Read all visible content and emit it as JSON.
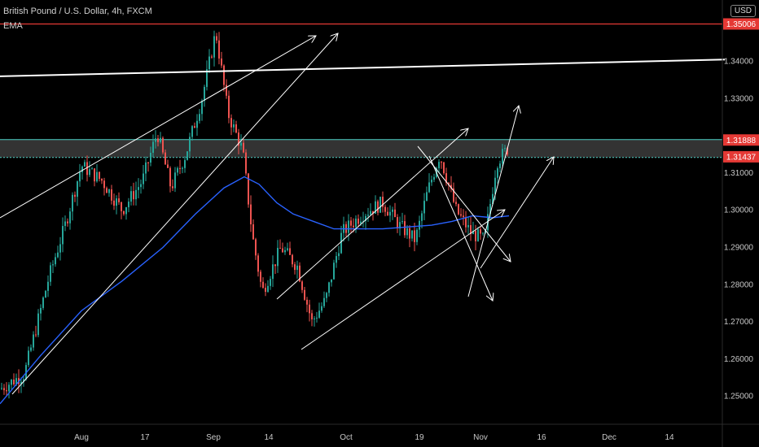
{
  "header": {
    "title": "British Pound / U.S. Dollar, 4h, FXCM",
    "indicator": "EMA"
  },
  "currency_label": "USD",
  "colors": {
    "background": "#000000",
    "candle_up": "#26a69a",
    "candle_down": "#ef5350",
    "ema": "#2962ff",
    "trendline": "#ffffff",
    "resistance": "#e53935",
    "zone": "#4dd0c5"
  },
  "chart_data": {
    "type": "candlestick",
    "symbol": "British Pound / U.S. Dollar",
    "timeframe": "4h",
    "source": "FXCM",
    "x_tick_labels": [
      "Aug",
      "17",
      "Sep",
      "14",
      "Oct",
      "19",
      "Nov",
      "16",
      "Dec",
      "14"
    ],
    "y_tick_labels": [
      "1.25000",
      "1.26000",
      "1.27000",
      "1.28000",
      "1.29000",
      "1.30000",
      "1.31000",
      "1.33000",
      "1.34000"
    ],
    "ylim": [
      1.2425,
      1.3565
    ],
    "price_labels": [
      {
        "value": 1.35006,
        "text": "1.35006",
        "color": "#e53935"
      },
      {
        "value": 1.31888,
        "text": "1.31888",
        "color": "#e53935"
      },
      {
        "value": 1.31437,
        "text": "1.31437",
        "color": "#e53935"
      }
    ],
    "horizontal_levels": [
      {
        "value": 1.35006,
        "color": "#e53935"
      }
    ],
    "zone": {
      "from": 1.3142,
      "to": 1.319
    },
    "price_path": [
      [
        0,
        1.252
      ],
      [
        30,
        1.256
      ],
      [
        60,
        1.282
      ],
      [
        80,
        1.296
      ],
      [
        100,
        1.312
      ],
      [
        125,
        1.308
      ],
      [
        150,
        1.3
      ],
      [
        175,
        1.308
      ],
      [
        193,
        1.321
      ],
      [
        210,
        1.306
      ],
      [
        228,
        1.315
      ],
      [
        248,
        1.33
      ],
      [
        265,
        1.348
      ],
      [
        280,
        1.326
      ],
      [
        298,
        1.316
      ],
      [
        310,
        1.293
      ],
      [
        322,
        1.278
      ],
      [
        345,
        1.29
      ],
      [
        365,
        1.285
      ],
      [
        383,
        1.27
      ],
      [
        400,
        1.276
      ],
      [
        420,
        1.294
      ],
      [
        445,
        1.299
      ],
      [
        470,
        1.302
      ],
      [
        490,
        1.296
      ],
      [
        510,
        1.292
      ],
      [
        525,
        1.305
      ],
      [
        540,
        1.315
      ],
      [
        560,
        1.3
      ],
      [
        578,
        1.294
      ],
      [
        595,
        1.292
      ],
      [
        610,
        1.313
      ],
      [
        625,
        1.317
      ]
    ],
    "ema_path": [
      [
        0,
        1.248
      ],
      [
        50,
        1.261
      ],
      [
        100,
        1.273
      ],
      [
        150,
        1.281
      ],
      [
        200,
        1.29
      ],
      [
        240,
        1.299
      ],
      [
        275,
        1.306
      ],
      [
        300,
        1.309
      ],
      [
        318,
        1.307
      ],
      [
        340,
        1.302
      ],
      [
        360,
        1.299
      ],
      [
        385,
        1.297
      ],
      [
        410,
        1.295
      ],
      [
        440,
        1.295
      ],
      [
        470,
        1.295
      ],
      [
        500,
        1.2955
      ],
      [
        530,
        1.296
      ],
      [
        555,
        1.297
      ],
      [
        580,
        1.2985
      ],
      [
        605,
        1.298
      ],
      [
        625,
        1.2985
      ]
    ],
    "trendlines": [
      {
        "from": [
          0,
          1.336
        ],
        "to": [
          890,
          1.3405
        ],
        "type": "line",
        "mode": "price"
      },
      {
        "x1": 0,
        "y1": 268,
        "x2": 388,
        "y2": 44,
        "arrow": true
      },
      {
        "x1": 15,
        "y1": 485,
        "x2": 415,
        "y2": 41,
        "arrow": true
      },
      {
        "x1": 340,
        "y1": 368,
        "x2": 575,
        "y2": 158,
        "arrow": true
      },
      {
        "x1": 370,
        "y1": 430,
        "x2": 620,
        "y2": 258,
        "arrow": true
      },
      {
        "x1": 513,
        "y1": 180,
        "x2": 627,
        "y2": 322,
        "arrow": true
      },
      {
        "x1": 527,
        "y1": 192,
        "x2": 605,
        "y2": 370,
        "arrow": true
      },
      {
        "x1": 575,
        "y1": 365,
        "x2": 637,
        "y2": 130,
        "arrow": true
      },
      {
        "x1": 590,
        "y1": 330,
        "x2": 680,
        "y2": 193,
        "arrow": true
      }
    ]
  }
}
